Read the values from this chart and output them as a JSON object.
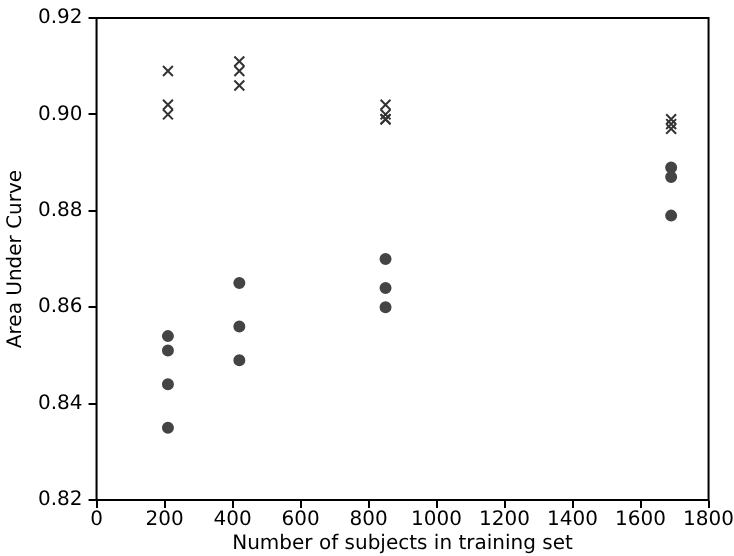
{
  "chart_data": {
    "type": "scatter",
    "xlabel": "Number of subjects in training set",
    "ylabel": "Area Under Curve",
    "xlim": [
      0,
      1800
    ],
    "xticks": [
      0,
      200,
      400,
      600,
      800,
      1000,
      1200,
      1400,
      1600,
      1800
    ],
    "ylim": [
      0.82,
      0.92
    ],
    "yticks": [
      {
        "value": 0.82,
        "label": "0.82"
      },
      {
        "value": 0.84,
        "label": "0.84"
      },
      {
        "value": 0.86,
        "label": "0.86"
      },
      {
        "value": 0.88,
        "label": "0.88"
      },
      {
        "value": 0.9,
        "label": "0.90"
      },
      {
        "value": 0.92,
        "label": "0.92"
      }
    ],
    "grid": false,
    "legend": false,
    "series": [
      {
        "color": "#333333",
        "marker": "cross",
        "x": [
          210,
          210,
          210,
          420,
          420,
          420,
          850,
          850,
          850,
          850,
          1690,
          1690,
          1690
        ],
        "values": [
          0.909,
          0.902,
          0.9,
          0.911,
          0.909,
          0.906,
          0.902,
          0.9,
          0.899,
          0.899,
          0.899,
          0.898,
          0.897
        ]
      },
      {
        "color": "#444444",
        "marker": "circle",
        "x": [
          210,
          210,
          210,
          210,
          420,
          420,
          420,
          850,
          850,
          850,
          1690,
          1690,
          1690
        ],
        "values": [
          0.854,
          0.851,
          0.844,
          0.835,
          0.865,
          0.856,
          0.849,
          0.87,
          0.864,
          0.86,
          0.889,
          0.887,
          0.879
        ]
      }
    ]
  }
}
